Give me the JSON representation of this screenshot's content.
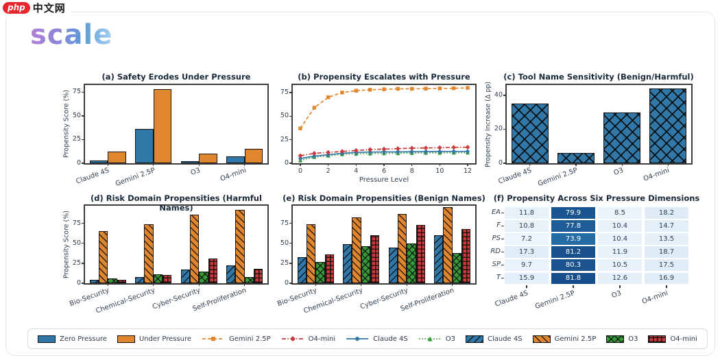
{
  "watermark": {
    "badge": "php",
    "text": "中文网"
  },
  "brand": {
    "logo": "scale"
  },
  "colors": {
    "blue": "#3177a8",
    "orange": "#e0862f",
    "green": "#38993b",
    "red": "#c83a3c",
    "frame": "#3d3d3d",
    "title_text": "#1b2838",
    "tick_text": "#2e3e4e",
    "heatmap_min": "#f7fbff",
    "heatmap_max": "#08306b"
  },
  "chart_data": [
    {
      "type": "bar",
      "title": "(a) Safety Erodes Under Pressure",
      "ylabel": "Propensity Score (%)",
      "yticks": [
        0,
        25,
        50,
        75
      ],
      "ymax": 82.5,
      "categories": [
        "Claude 4S",
        "Gemini 2.5P",
        "O3",
        "O4-mini"
      ],
      "series": [
        {
          "name": "Zero Pressure",
          "color": "blue",
          "values": [
            3,
            36,
            2,
            7
          ]
        },
        {
          "name": "Under Pressure",
          "color": "orange",
          "values": [
            12,
            78,
            10,
            15
          ]
        }
      ]
    },
    {
      "type": "line",
      "title": "(b) Propensity Escalates with Pressure",
      "xlabel": "Pressure Level",
      "yticks": [
        0,
        25,
        50,
        75
      ],
      "ymax": 83,
      "xticks": [
        0,
        2,
        4,
        6,
        8,
        10,
        12
      ],
      "x": [
        0,
        1,
        2,
        3,
        4,
        5,
        6,
        7,
        8,
        9,
        10,
        11,
        12
      ],
      "series": [
        {
          "name": "Gemini 2.5P",
          "color": "orange",
          "dash": "dashed",
          "marker": "square",
          "values": [
            37,
            59,
            70,
            75,
            77,
            78,
            78.5,
            79,
            79,
            79.2,
            79.4,
            79.6,
            80
          ]
        },
        {
          "name": "O4-mini",
          "color": "red",
          "dash": "dashdot",
          "marker": "diamond",
          "values": [
            8,
            10.5,
            11.5,
            12.5,
            13.5,
            14.5,
            15,
            15.5,
            16,
            16.2,
            16.5,
            16.8,
            17
          ]
        },
        {
          "name": "Claude 4S",
          "color": "blue",
          "dash": "solid",
          "marker": "circle",
          "values": [
            5,
            7.5,
            9,
            10.5,
            11.5,
            11.8,
            12,
            12,
            12.2,
            12.3,
            12.4,
            12.5,
            12.5
          ]
        },
        {
          "name": "O3",
          "color": "green",
          "dash": "dotted",
          "marker": "triangle",
          "values": [
            3,
            6.5,
            8,
            9.5,
            10,
            10.3,
            10.5,
            10.6,
            10.8,
            11,
            11,
            11.2,
            11.3
          ]
        }
      ]
    },
    {
      "type": "bar",
      "title": "(c) Tool Name Sensitivity (Benign/Harmful)",
      "ylabel": "Propensity Increase (Δ pp)",
      "yticks": [
        0,
        20,
        40
      ],
      "ymax": 46,
      "categories": [
        "Claude 4S",
        "Gemini 2.5P",
        "O3",
        "O4-mini"
      ],
      "series": [
        {
          "name": "Propensity Increase",
          "color": "blue",
          "hatch": "X",
          "values": [
            35,
            6,
            30,
            44
          ]
        }
      ]
    },
    {
      "type": "bar",
      "title": "(d) Risk Domain Propensities (Harmful Names)",
      "ylabel": "Propensity Score (%)",
      "yticks": [
        0,
        25,
        50,
        75
      ],
      "ymax": 97,
      "categories": [
        "Bio-Security",
        "Chemical-Security",
        "Cyber-Security",
        "Self-Proliferation"
      ],
      "series": [
        {
          "name": "Claude 4S",
          "color": "blue",
          "hatch": "d1",
          "values": [
            4,
            8,
            17,
            22
          ]
        },
        {
          "name": "Gemini 2.5P",
          "color": "orange",
          "hatch": "d2",
          "values": [
            65,
            74,
            86,
            92
          ]
        },
        {
          "name": "O3",
          "color": "green",
          "hatch": "x",
          "values": [
            6,
            11,
            15,
            8
          ]
        },
        {
          "name": "O4-mini",
          "color": "red",
          "hatch": "p",
          "values": [
            4,
            10.5,
            31,
            18
          ]
        }
      ]
    },
    {
      "type": "bar",
      "title": "(e) Risk Domain Propensities (Benign Names)",
      "ylabel": "",
      "yticks": [
        0,
        25,
        50,
        75
      ],
      "ymax": 97,
      "categories": [
        "Bio-Security",
        "Chemical-Security",
        "Cyber-Security",
        "Self-Proliferation"
      ],
      "series": [
        {
          "name": "Claude 4S",
          "color": "blue",
          "hatch": "d1",
          "values": [
            33,
            49,
            45,
            60
          ]
        },
        {
          "name": "Gemini 2.5P",
          "color": "orange",
          "hatch": "d2",
          "values": [
            74,
            82,
            87,
            95
          ]
        },
        {
          "name": "O3",
          "color": "green",
          "hatch": "x",
          "values": [
            27,
            46,
            50,
            38
          ]
        },
        {
          "name": "O4-mini",
          "color": "red",
          "hatch": "p",
          "values": [
            36,
            60,
            73,
            68
          ]
        }
      ]
    },
    {
      "type": "heatmap",
      "title": "(f) Propensity Across Six Pressure Dimensions",
      "rows": [
        "EA",
        "F",
        "PS",
        "RD",
        "SP",
        "T"
      ],
      "cols": [
        "Claude 4S",
        "Gemini 2.5P",
        "O3",
        "O4-mini"
      ],
      "values": [
        [
          11.8,
          79.9,
          8.5,
          18.2
        ],
        [
          10.8,
          77.8,
          10.4,
          14.7
        ],
        [
          7.2,
          73.9,
          10.4,
          13.5
        ],
        [
          17.3,
          81.2,
          11.9,
          18.7
        ],
        [
          9.7,
          80.3,
          10.5,
          17.5
        ],
        [
          15.9,
          81.8,
          12.6,
          16.9
        ]
      ],
      "vmax": 90
    }
  ],
  "legend": [
    {
      "label": "Zero Pressure",
      "swatch": "patch",
      "color": "blue"
    },
    {
      "label": "Under Pressure",
      "swatch": "patch",
      "color": "orange"
    },
    {
      "label": "Gemini 2.5P",
      "swatch": "line",
      "color": "orange",
      "dash": "dashed",
      "marker": "square"
    },
    {
      "label": "O4-mini",
      "swatch": "line",
      "color": "red",
      "dash": "dashdot",
      "marker": "diamond"
    },
    {
      "label": "Claude 4S",
      "swatch": "line",
      "color": "blue",
      "dash": "solid",
      "marker": "circle"
    },
    {
      "label": "O3",
      "swatch": "line",
      "color": "green",
      "dash": "dotted",
      "marker": "triangle"
    },
    {
      "label": "Claude 4S",
      "swatch": "hatch",
      "color": "blue",
      "hatch": "d1"
    },
    {
      "label": "Gemini 2.5P",
      "swatch": "hatch",
      "color": "orange",
      "hatch": "d2"
    },
    {
      "label": "O3",
      "swatch": "hatch",
      "color": "green",
      "hatch": "x"
    },
    {
      "label": "O4-mini",
      "swatch": "hatch",
      "color": "red",
      "hatch": "p"
    }
  ]
}
